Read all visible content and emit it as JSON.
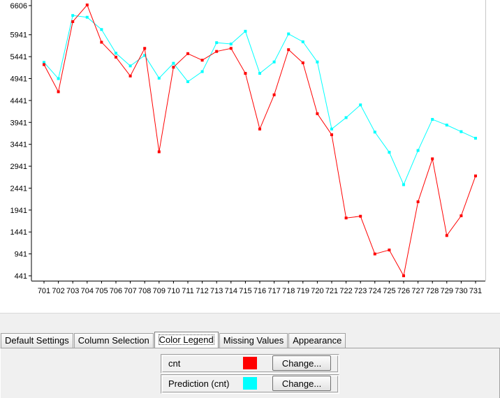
{
  "chart_data": {
    "type": "line",
    "x": [
      701,
      702,
      703,
      704,
      705,
      706,
      707,
      708,
      709,
      710,
      711,
      712,
      713,
      714,
      715,
      716,
      717,
      718,
      719,
      720,
      721,
      722,
      723,
      724,
      725,
      726,
      727,
      728,
      729,
      730,
      731
    ],
    "ylim": [
      441,
      6606
    ],
    "y_ticks": [
      441,
      941,
      1441,
      1941,
      2441,
      2941,
      3441,
      3941,
      4441,
      4941,
      5441,
      5941,
      6606
    ],
    "grid": false,
    "title": "",
    "xlabel": "",
    "ylabel": "",
    "series": [
      {
        "name": "cnt",
        "color": "#ff0000",
        "values": [
          5260,
          4640,
          6240,
          6620,
          5770,
          5430,
          5000,
          5630,
          3270,
          5200,
          5510,
          5360,
          5560,
          5630,
          5060,
          3790,
          4570,
          5600,
          5300,
          4140,
          3660,
          1760,
          1800,
          940,
          1030,
          441,
          2130,
          3110,
          1360,
          1810,
          2720
        ]
      },
      {
        "name": "Prediction (cnt)",
        "color": "#00ffff",
        "values": [
          5310,
          4940,
          6380,
          6340,
          6060,
          5520,
          5230,
          5470,
          4950,
          5290,
          4870,
          5100,
          5760,
          5730,
          6020,
          5060,
          5320,
          5960,
          5780,
          5320,
          3790,
          4050,
          4340,
          3720,
          3260,
          2520,
          3300,
          4010,
          3880,
          3730,
          3580
        ]
      }
    ]
  },
  "tabs": [
    {
      "label": "Default Settings"
    },
    {
      "label": "Column Selection"
    },
    {
      "label": "Color Legend"
    },
    {
      "label": "Missing Values"
    },
    {
      "label": "Appearance"
    }
  ],
  "legend": {
    "rows": [
      {
        "name": "cnt",
        "color": "#ff0000",
        "button_label": "Change..."
      },
      {
        "name": "Prediction (cnt)",
        "color": "#00ffff",
        "button_label": "Change..."
      }
    ]
  }
}
